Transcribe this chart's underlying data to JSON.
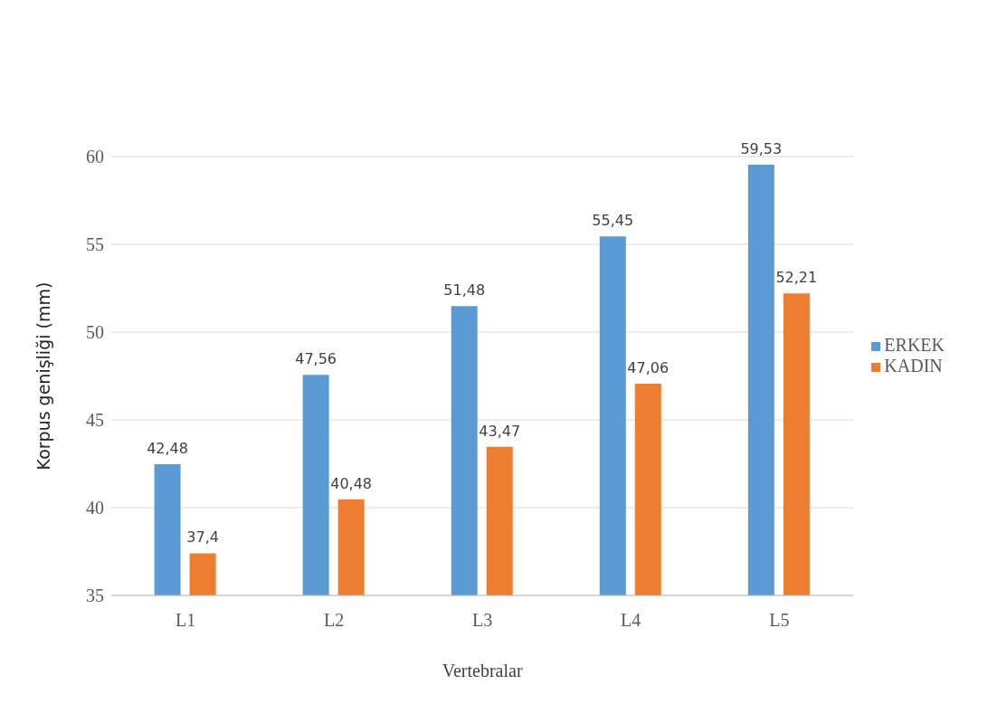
{
  "chart_data": {
    "type": "bar",
    "xlabel": "Vertebralar",
    "ylabel": "Korpus genişliği (mm)",
    "categories": [
      "L1",
      "L2",
      "L3",
      "L4",
      "L5"
    ],
    "series": [
      {
        "name": "ERKEK",
        "color": "#5b9bd5",
        "values": [
          42.48,
          47.56,
          51.48,
          55.45,
          59.53
        ],
        "value_labels": [
          "42,48",
          "47,56",
          "51,48",
          "55,45",
          "59,53"
        ]
      },
      {
        "name": "KADIN",
        "color": "#ed7d31",
        "values": [
          37.4,
          40.48,
          43.47,
          47.06,
          52.21
        ],
        "value_labels": [
          "37,4",
          "40,48",
          "43,47",
          "47,06",
          "52,21"
        ]
      }
    ],
    "ylim": [
      35,
      60
    ],
    "yticks": [
      35,
      40,
      45,
      50,
      55,
      60
    ],
    "grid": "y",
    "legend": "right"
  }
}
